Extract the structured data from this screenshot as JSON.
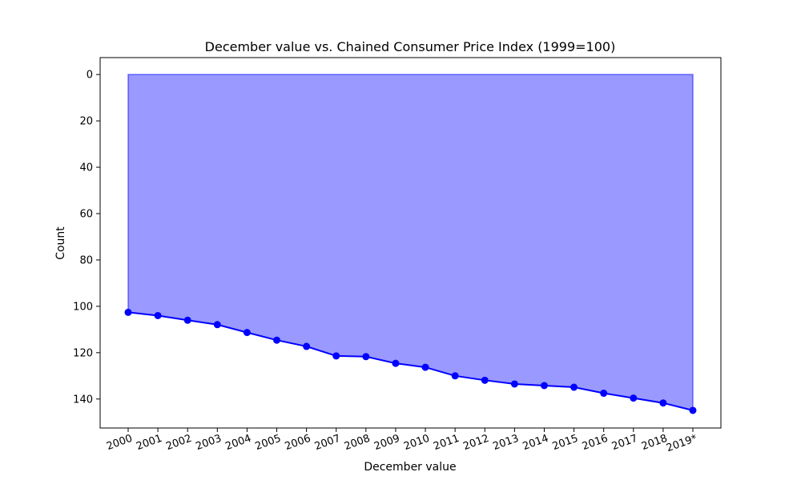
{
  "chart_data": {
    "type": "area",
    "title": "December value vs. Chained Consumer Price Index (1999=100)",
    "xlabel": "December value",
    "ylabel": "Count",
    "categories": [
      "2000",
      "2001",
      "2002",
      "2003",
      "2004",
      "2005",
      "2006",
      "2007",
      "2008",
      "2009",
      "2010",
      "2011",
      "2012",
      "2013",
      "2014",
      "2015",
      "2016",
      "2017",
      "2018",
      "2019*"
    ],
    "series": [
      {
        "values": [
          102.6,
          104.0,
          106.0,
          107.9,
          111.3,
          114.6,
          117.3,
          121.4,
          121.7,
          124.6,
          126.3,
          130.0,
          131.9,
          133.5,
          134.2,
          134.9,
          137.5,
          139.6,
          141.7,
          144.9
        ]
      }
    ],
    "y_axis_inverted": true,
    "ylim": [
      152.5,
      -7.3
    ],
    "yticks": [
      0,
      20,
      40,
      60,
      80,
      100,
      120,
      140
    ],
    "fill_baseline": 0,
    "grid": false,
    "legend": "none",
    "colors": {
      "line": "#0000ff",
      "fill": "#0000ff",
      "fill_opacity": 0.4
    }
  }
}
